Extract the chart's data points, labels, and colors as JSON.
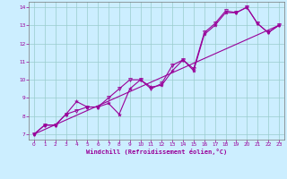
{
  "xlabel": "Windchill (Refroidissement éolien,°C)",
  "xlim": [
    -0.5,
    23.5
  ],
  "ylim": [
    6.7,
    14.3
  ],
  "xticks": [
    0,
    1,
    2,
    3,
    4,
    5,
    6,
    7,
    8,
    9,
    10,
    11,
    12,
    13,
    14,
    15,
    16,
    17,
    18,
    19,
    20,
    21,
    22,
    23
  ],
  "yticks": [
    7,
    8,
    9,
    10,
    11,
    12,
    13,
    14
  ],
  "bg_color": "#cceeff",
  "line_color": "#990099",
  "grid_color": "#99cccc",
  "line1_x": [
    0,
    1,
    2,
    3,
    4,
    5,
    6,
    7,
    8,
    9,
    10,
    11,
    12,
    13,
    14,
    15,
    16,
    17,
    18,
    19,
    20,
    21,
    22,
    23
  ],
  "line1_y": [
    7.0,
    7.5,
    7.5,
    8.1,
    8.8,
    8.5,
    8.5,
    8.7,
    8.1,
    9.5,
    10.0,
    9.6,
    9.7,
    10.5,
    11.1,
    10.5,
    12.5,
    13.0,
    13.7,
    13.7,
    14.0,
    13.1,
    12.6,
    13.0
  ],
  "line2_x": [
    0,
    1,
    2,
    3,
    4,
    5,
    6,
    7,
    8,
    9,
    10,
    11,
    12,
    13,
    14,
    15,
    16,
    17,
    18,
    19,
    20,
    21,
    22,
    23
  ],
  "line2_y": [
    7.0,
    7.5,
    7.5,
    8.1,
    8.3,
    8.5,
    8.5,
    9.0,
    9.5,
    10.0,
    10.0,
    9.5,
    9.8,
    10.8,
    11.1,
    10.6,
    12.6,
    13.1,
    13.8,
    13.7,
    14.0,
    13.1,
    12.6,
    13.0
  ],
  "line3_x": [
    0,
    23
  ],
  "line3_y": [
    7.0,
    13.0
  ]
}
